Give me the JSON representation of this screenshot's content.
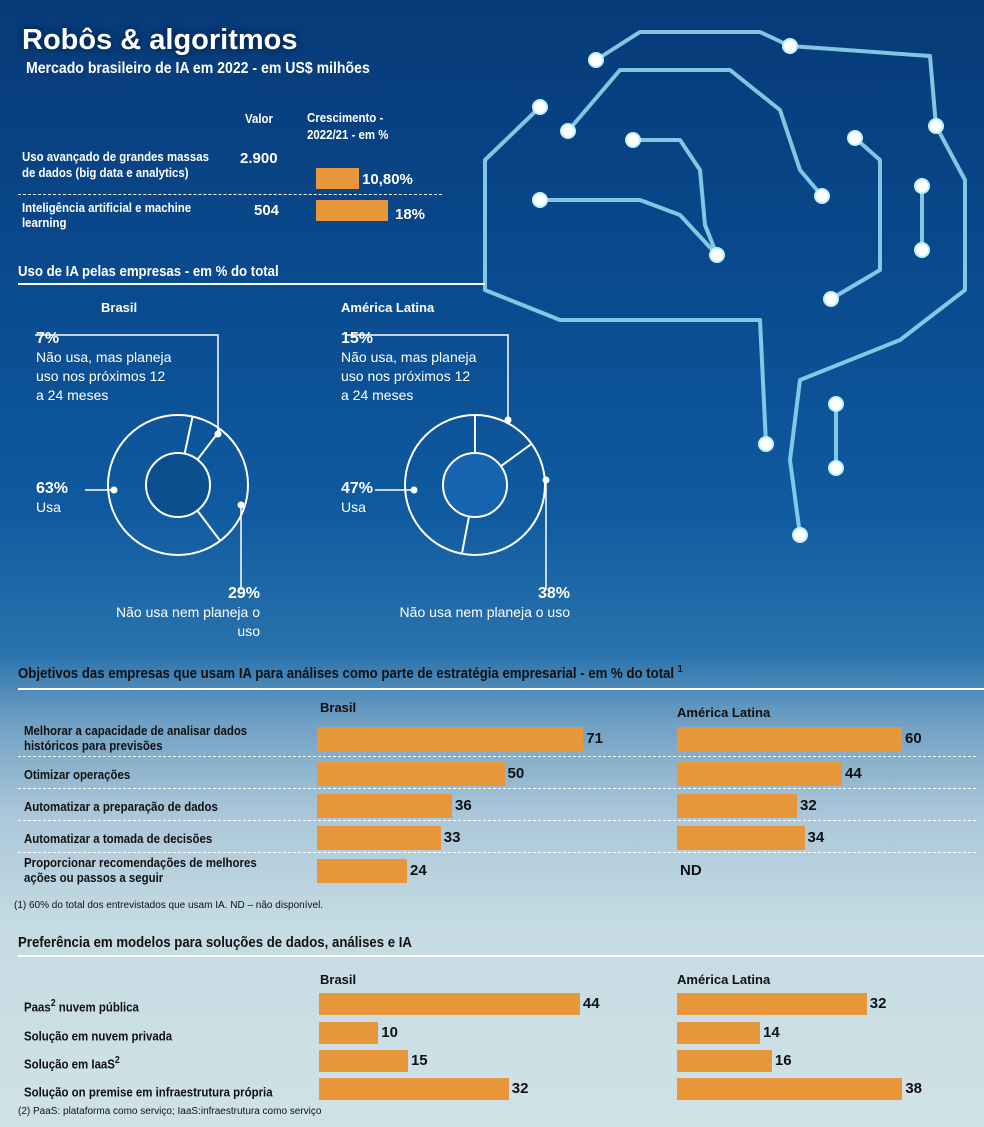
{
  "header": {
    "title": "Robôs & algoritmos",
    "subtitle": "Mercado brasileiro de IA em 2022 - em US$ milhões"
  },
  "colors": {
    "bar": "#e8963a",
    "circuit": "#8fd6ee",
    "background_top": "#073a78",
    "background_bottom": "#cfe2e6"
  },
  "chart_data": [
    {
      "type": "table",
      "title": "Mercado brasileiro de IA em 2022 - em US$ milhões",
      "columns": [
        "Valor",
        "Crescimento -",
        "2022/21 - em %"
      ],
      "rows": [
        {
          "label1": "Uso avançado de grandes massas",
          "label2": "de dados (big data e analytics)",
          "valor": "2.900",
          "growth": 10.8,
          "growth_label": "10,80%"
        },
        {
          "label1": "Inteligência artificial e machine",
          "label2": "learning",
          "valor": "504",
          "growth": 18,
          "growth_label": "18%"
        }
      ]
    },
    {
      "type": "pie",
      "title": "Uso de IA pelas empresas - em % do total",
      "charts": [
        {
          "name": "Brasil",
          "slices": [
            {
              "pct": "7%",
              "value": 7,
              "l1": "Não usa, mas planeja",
              "l2": "uso nos próximos 12",
              "l3": "a 24 meses"
            },
            {
              "pct": "29%",
              "value": 29,
              "l1": "Não usa nem planeja o uso"
            },
            {
              "pct": "63%",
              "value": 63,
              "l1": "Usa"
            }
          ]
        },
        {
          "name": "América Latina",
          "slices": [
            {
              "pct": "15%",
              "value": 15,
              "l1": "Não usa, mas planeja",
              "l2": "uso nos próximos 12",
              "l3": "a 24 meses"
            },
            {
              "pct": "38%",
              "value": 38,
              "l1": "Não usa nem planeja o uso"
            },
            {
              "pct": "47%",
              "value": 47,
              "l1": "Usa"
            }
          ]
        }
      ]
    },
    {
      "type": "bar",
      "title": "Objetivos das empresas que usam IA para análises como parte de estratégia empresarial - em % do total",
      "title_sup": "1",
      "series_names": [
        "Brasil",
        "América Latina"
      ],
      "categories": [
        {
          "l1": "Melhorar a capacidade de analisar dados",
          "l2": "históricos para previsões",
          "brasil": 71,
          "latam": 60
        },
        {
          "l1": "Otimizar operações",
          "l2": "",
          "brasil": 50,
          "latam": 44
        },
        {
          "l1": "Automatizar a preparação de dados",
          "l2": "",
          "brasil": 36,
          "latam": 32
        },
        {
          "l1": "Automatizar a tomada de decisões",
          "l2": "",
          "brasil": 33,
          "latam": 34
        },
        {
          "l1": "Proporcionar recomendações de melhores",
          "l2": "ações ou passos a seguir",
          "brasil": 24,
          "latam": "ND"
        }
      ],
      "footnote": "(1) 60% do total dos entrevistados que usam IA. ND – não disponível."
    },
    {
      "type": "bar",
      "title": "Preferência em modelos para soluções de dados, análises e IA",
      "series_names": [
        "Brasil",
        "América Latina"
      ],
      "categories": [
        {
          "l1": "Paas",
          "sup": "2",
          "l1b": " nuvem pública",
          "brasil": 44,
          "latam": 32
        },
        {
          "l1": "Solução em nuvem privada",
          "sup": "",
          "l1b": "",
          "brasil": 10,
          "latam": 14
        },
        {
          "l1": "Solução em IaaS",
          "sup": "2",
          "l1b": "",
          "brasil": 15,
          "latam": 16
        },
        {
          "l1": "Solução on premise em infraestrutura própria",
          "sup": "",
          "l1b": "",
          "brasil": 32,
          "latam": 38
        }
      ],
      "footnote": "(2) PaaS: plataforma como serviço; IaaS:infraestrutura como serviço"
    }
  ]
}
